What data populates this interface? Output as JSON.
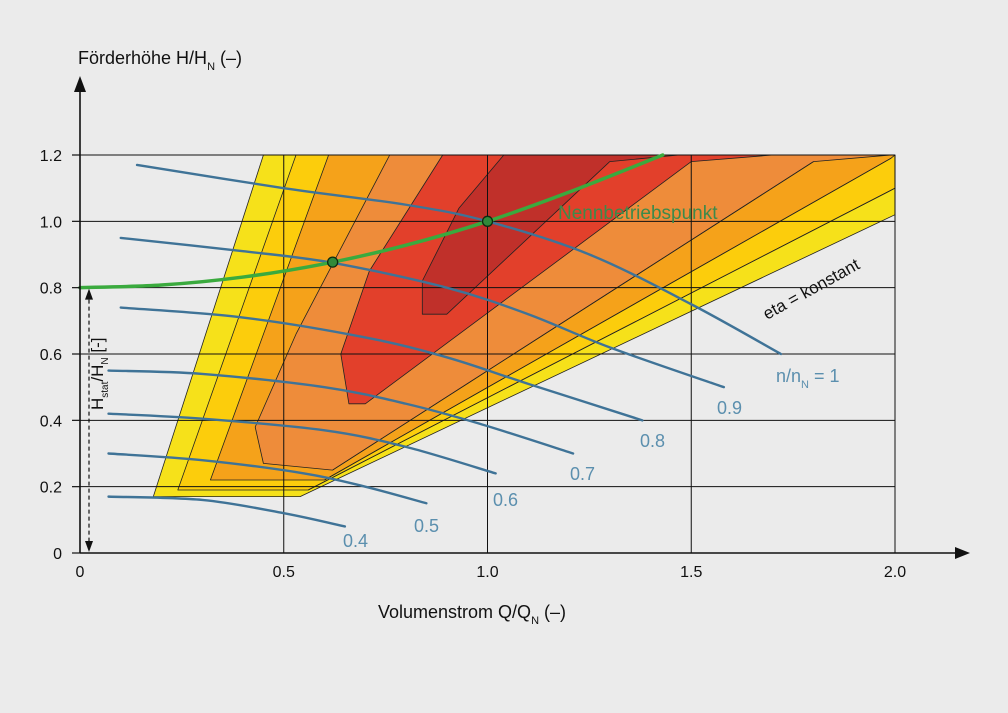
{
  "chart_data": {
    "type": "line",
    "title": "",
    "xlabel": {
      "main": "Volumenstrom Q/Q",
      "sub": "N",
      "unit": " (–)"
    },
    "ylabel": {
      "main": "Förderhöhe H/H",
      "sub": "N",
      "unit": " (–)"
    },
    "xlim": [
      0,
      2.0
    ],
    "ylim": [
      0,
      1.2
    ],
    "x_ticks": [
      0,
      0.5,
      1.0,
      1.5,
      2.0
    ],
    "x_tick_labels": [
      "0",
      "0.5",
      "1.0",
      "1.5",
      "2.0"
    ],
    "y_ticks": [
      0,
      0.2,
      0.4,
      0.6,
      0.8,
      1.0,
      1.2
    ],
    "y_tick_labels": [
      "0",
      "0.2",
      "0.4",
      "0.6",
      "0.8",
      "1.0",
      "1.2"
    ],
    "grid": true,
    "efficiency_zones": {
      "label": "eta = konstant",
      "colors": [
        "#f6e11a",
        "#fccd0c",
        "#f5a21a",
        "#ee8c3a",
        "#e2402b",
        "#c0302a"
      ],
      "boundary_lines": [
        {
          "upper_left": [
            [
              0.45,
              1.2
            ],
            [
              0.18,
              0.17
            ]
          ],
          "lower_right": [
            [
              2.0,
              1.2
            ],
            [
              0.18,
              0.17
            ]
          ]
        }
      ]
    },
    "speed_curves": {
      "label_main": "n/n",
      "label_sub": "N",
      "label_suffix": " = 1",
      "series": [
        {
          "name": "1",
          "x": [
            0.14,
            0.5,
            0.8,
            1.0,
            1.25,
            1.5,
            1.72
          ],
          "y": [
            1.17,
            1.1,
            1.05,
            1.0,
            0.9,
            0.75,
            0.6
          ]
        },
        {
          "name": "0.9",
          "x": [
            0.1,
            0.4,
            0.62,
            0.9,
            1.1,
            1.3,
            1.58
          ],
          "y": [
            0.95,
            0.91,
            0.875,
            0.8,
            0.72,
            0.62,
            0.5
          ]
        },
        {
          "name": "0.8",
          "x": [
            0.1,
            0.4,
            0.7,
            0.9,
            1.1,
            1.38
          ],
          "y": [
            0.74,
            0.71,
            0.65,
            0.59,
            0.51,
            0.4
          ]
        },
        {
          "name": "0.7",
          "x": [
            0.07,
            0.3,
            0.6,
            0.8,
            0.98,
            1.21
          ],
          "y": [
            0.55,
            0.54,
            0.5,
            0.45,
            0.39,
            0.3
          ]
        },
        {
          "name": "0.6",
          "x": [
            0.07,
            0.3,
            0.6,
            0.8,
            1.02
          ],
          "y": [
            0.42,
            0.405,
            0.37,
            0.32,
            0.24
          ]
        },
        {
          "name": "0.5",
          "x": [
            0.07,
            0.3,
            0.55,
            0.7,
            0.85
          ],
          "y": [
            0.3,
            0.28,
            0.24,
            0.2,
            0.15
          ]
        },
        {
          "name": "0.4",
          "x": [
            0.07,
            0.3,
            0.5,
            0.65
          ],
          "y": [
            0.17,
            0.16,
            0.12,
            0.08
          ]
        }
      ],
      "label_values": [
        "0.9",
        "0.8",
        "0.7",
        "0.6",
        "0.5",
        "0.4"
      ]
    },
    "system_curve": {
      "color": "#3aaa3e",
      "x": [
        0,
        0.2,
        0.4,
        0.6,
        0.8,
        1.0,
        1.2,
        1.43
      ],
      "y": [
        0.8,
        0.808,
        0.832,
        0.872,
        0.928,
        1.0,
        1.088,
        1.2
      ]
    },
    "points": [
      {
        "x": 0.62,
        "y": 0.877
      },
      {
        "x": 1.0,
        "y": 1.0
      }
    ],
    "annotations": {
      "nominal_point": "Nennbetriebspunkt",
      "h_stat_main": "H",
      "h_stat_sub1": "stat",
      "h_stat_mid": "/H",
      "h_stat_sub2": "N",
      "h_stat_suffix": " [-]"
    },
    "colors": {
      "speed_curve": "#3f7397",
      "speed_label": "#5b8fae",
      "system_curve": "#3aaa3e",
      "nominal_label": "#3d8a4a",
      "axis": "#111111"
    }
  }
}
